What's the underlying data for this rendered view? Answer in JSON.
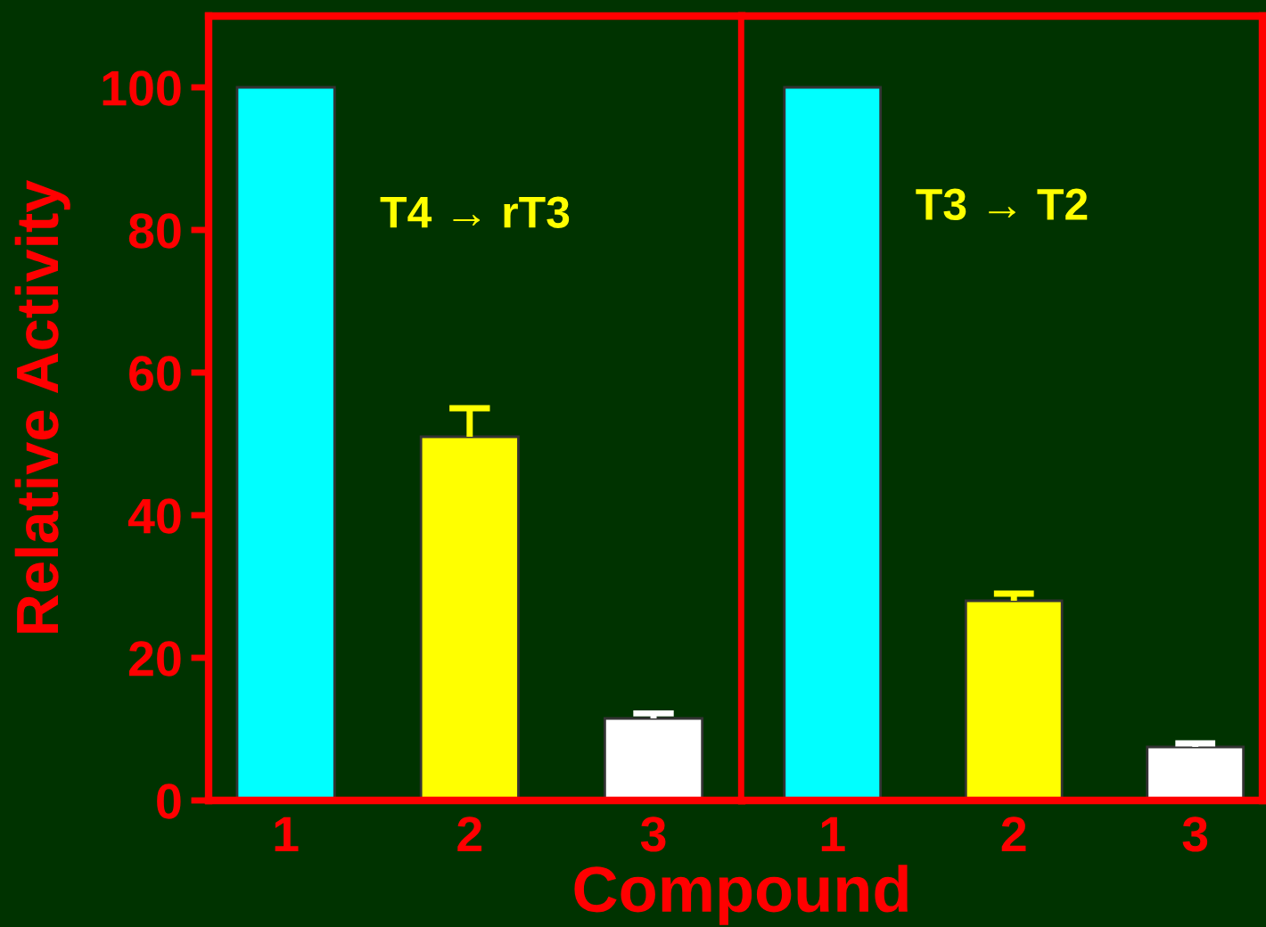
{
  "chart_data": [
    {
      "type": "bar",
      "ylabel": "Relative Activity",
      "xlabel": "Compound",
      "categories": [
        "1",
        "2",
        "3"
      ],
      "values": [
        100,
        51,
        11.5
      ],
      "colors": [
        "#00ffff",
        "#ffff00",
        "#ffffff"
      ],
      "errors": [
        null,
        [
          51,
          55
        ],
        [
          11.5,
          12.2
        ]
      ],
      "ylim": [
        0,
        110
      ],
      "yticks": [
        0,
        20,
        40,
        60,
        80,
        100
      ],
      "annotations": [
        "T4 → rT3"
      ],
      "grid": false,
      "legend": false
    },
    {
      "type": "bar",
      "categories": [
        "1",
        "2",
        "3"
      ],
      "values": [
        100,
        28,
        7.5
      ],
      "colors": [
        "#00ffff",
        "#ffff00",
        "#ffffff"
      ],
      "errors": [
        null,
        [
          28,
          29
        ],
        [
          7.5,
          8
        ]
      ],
      "ylim": [
        0,
        110
      ],
      "tick_labels": "x",
      "annotations": [
        "T3 → T2"
      ],
      "grid": false,
      "legend": false
    }
  ]
}
